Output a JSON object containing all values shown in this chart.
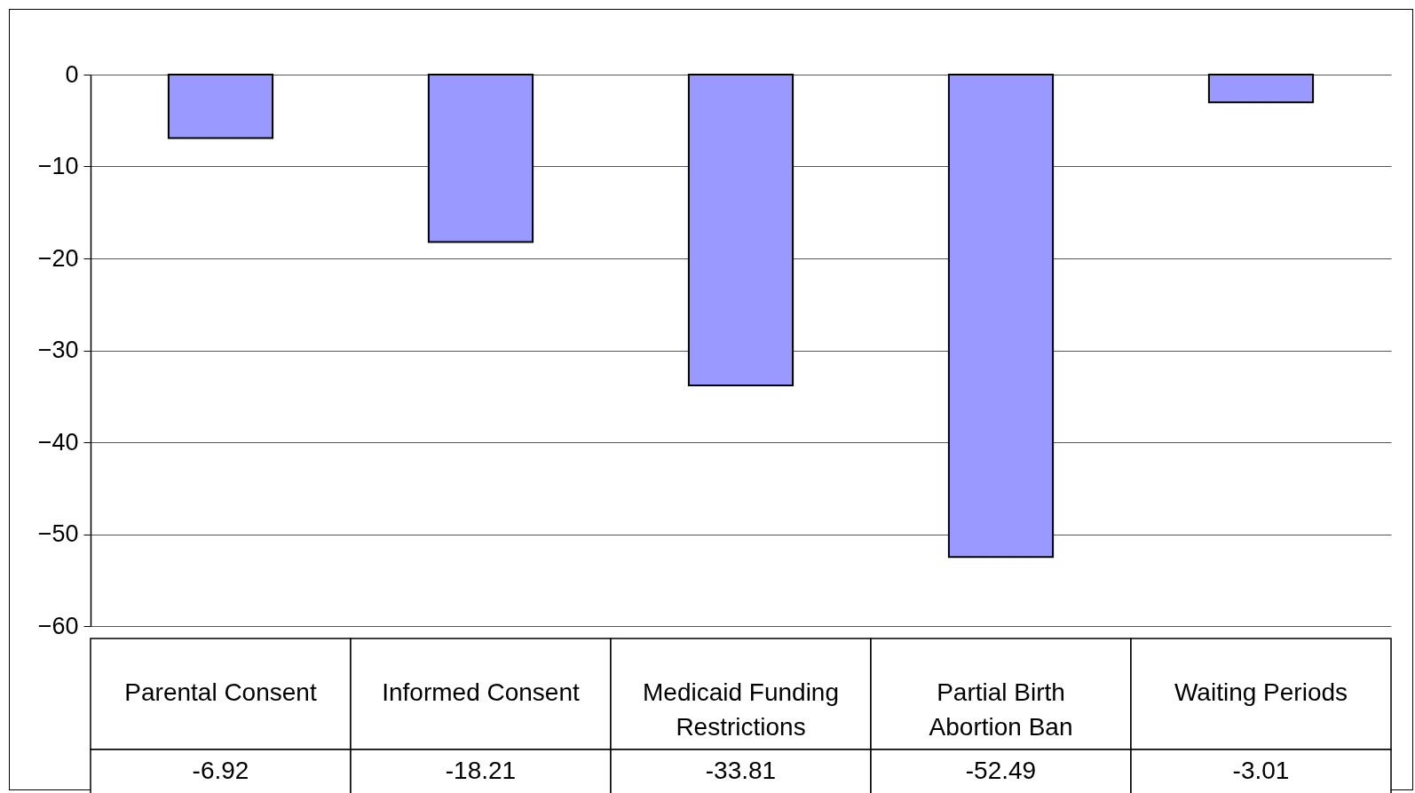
{
  "chart_data": {
    "type": "bar",
    "categories": [
      "Parental Consent",
      "Informed Consent",
      "Medicaid Funding Restrictions",
      "Partial Birth Abortion Ban",
      "Waiting Periods"
    ],
    "values": [
      -6.92,
      -18.21,
      -33.81,
      -52.49,
      -3.01
    ],
    "color": "#9999ff",
    "ylim": [
      -60,
      0
    ],
    "yticks": [
      0,
      -10,
      -20,
      -30,
      -40,
      -50,
      -60
    ],
    "grid": "y",
    "data_labels": true
  }
}
